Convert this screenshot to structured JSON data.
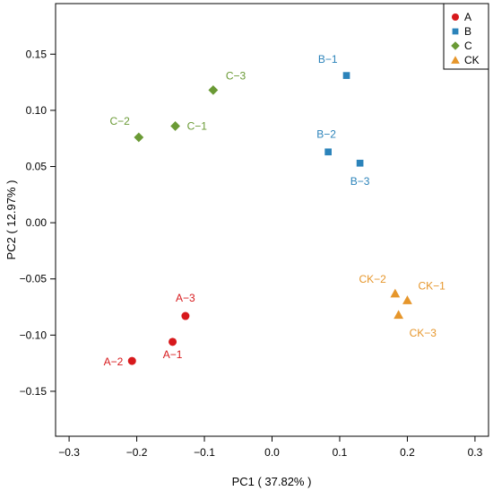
{
  "chart_data": {
    "type": "scatter",
    "xlabel": "PC1 ( 37.82% )",
    "ylabel": "PC2 ( 12.97% )",
    "xlim": [
      -0.32,
      0.32
    ],
    "ylim": [
      -0.19,
      0.195
    ],
    "xticks": [
      -0.3,
      -0.2,
      -0.1,
      0.0,
      0.1,
      0.2,
      0.3
    ],
    "xtick_labels": [
      "−0.3",
      "−0.2",
      "−0.1",
      "0.0",
      "0.1",
      "0.2",
      "0.3"
    ],
    "yticks": [
      -0.15,
      -0.1,
      -0.05,
      0.0,
      0.05,
      0.1,
      0.15
    ],
    "ytick_labels": [
      "−0.15",
      "−0.10",
      "−0.05",
      "0.00",
      "0.05",
      "0.10",
      "0.15"
    ],
    "grid": false,
    "legend_position": "top-right",
    "series": [
      {
        "name": "A",
        "color": "#d7191c",
        "marker": "circle",
        "points": [
          {
            "label": "A−1",
            "x": -0.147,
            "y": -0.106
          },
          {
            "label": "A−2",
            "x": -0.207,
            "y": -0.123
          },
          {
            "label": "A−3",
            "x": -0.128,
            "y": -0.083
          }
        ]
      },
      {
        "name": "B",
        "color": "#2b83ba",
        "marker": "square",
        "points": [
          {
            "label": "B−1",
            "x": 0.11,
            "y": 0.131
          },
          {
            "label": "B−2",
            "x": 0.083,
            "y": 0.063
          },
          {
            "label": "B−3",
            "x": 0.13,
            "y": 0.053
          }
        ]
      },
      {
        "name": "C",
        "color": "#6a9a35",
        "marker": "diamond",
        "points": [
          {
            "label": "C−1",
            "x": -0.143,
            "y": 0.086
          },
          {
            "label": "C−2",
            "x": -0.197,
            "y": 0.076
          },
          {
            "label": "C−3",
            "x": -0.087,
            "y": 0.118
          }
        ]
      },
      {
        "name": "CK",
        "color": "#e6962b",
        "marker": "triangle",
        "points": [
          {
            "label": "CK−1",
            "x": 0.2,
            "y": -0.069
          },
          {
            "label": "CK−2",
            "x": 0.182,
            "y": -0.063
          },
          {
            "label": "CK−3",
            "x": 0.187,
            "y": -0.082
          }
        ]
      }
    ]
  }
}
